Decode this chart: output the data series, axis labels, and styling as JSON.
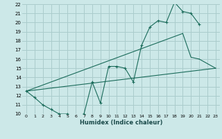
{
  "xlabel": "Humidex (Indice chaleur)",
  "bg_color": "#cce8e8",
  "grid_color": "#aacccc",
  "line_color": "#1a6b5a",
  "xlim": [
    -0.5,
    23.5
  ],
  "ylim": [
    10,
    22
  ],
  "xticks": [
    0,
    1,
    2,
    3,
    4,
    5,
    6,
    7,
    8,
    9,
    10,
    11,
    12,
    13,
    14,
    15,
    16,
    17,
    18,
    19,
    20,
    21,
    22,
    23
  ],
  "yticks": [
    10,
    11,
    12,
    13,
    14,
    15,
    16,
    17,
    18,
    19,
    20,
    21,
    22
  ],
  "series_main": {
    "x": [
      0,
      1,
      2,
      3,
      4,
      5,
      6,
      7,
      8,
      9,
      10,
      11,
      12,
      13,
      14,
      15,
      16,
      17,
      18,
      19,
      20,
      21
    ],
    "y": [
      12.5,
      11.8,
      11.0,
      10.5,
      10.0,
      10.0,
      9.8,
      10.0,
      13.5,
      11.2,
      15.2,
      15.2,
      15.0,
      13.5,
      17.5,
      19.5,
      20.2,
      20.0,
      22.2,
      21.2,
      21.0,
      19.8
    ]
  },
  "series_lower": {
    "x": [
      0,
      23
    ],
    "y": [
      12.5,
      15.0
    ]
  },
  "series_upper": {
    "x": [
      0,
      19,
      20,
      21,
      22,
      23
    ],
    "y": [
      12.5,
      18.8,
      16.2,
      16.0,
      null,
      15.0
    ]
  }
}
